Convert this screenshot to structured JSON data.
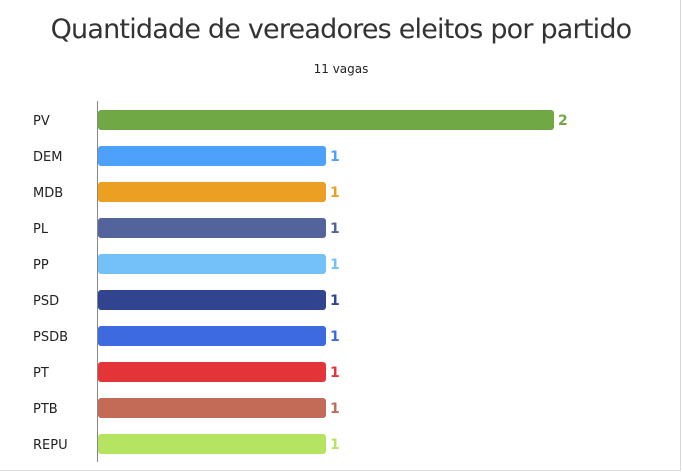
{
  "title": "Quantidade de vereadores eleitos por partido",
  "subtitle": "11 vagas",
  "chart_data": {
    "type": "bar",
    "orientation": "horizontal",
    "title": "Quantidade de vereadores eleitos por partido",
    "subtitle": "11 vagas",
    "categories": [
      "PV",
      "DEM",
      "MDB",
      "PL",
      "PP",
      "PSD",
      "PSDB",
      "PT",
      "PTB",
      "REPU"
    ],
    "values": [
      2,
      1,
      1,
      1,
      1,
      1,
      1,
      1,
      1,
      1
    ],
    "colors": [
      "#70a845",
      "#4da1fb",
      "#eba023",
      "#53639b",
      "#73c1f8",
      "#31448f",
      "#3d6ade",
      "#e33537",
      "#c36b56",
      "#b5e462"
    ],
    "data_labels": true,
    "grid": false,
    "legend": "none"
  }
}
